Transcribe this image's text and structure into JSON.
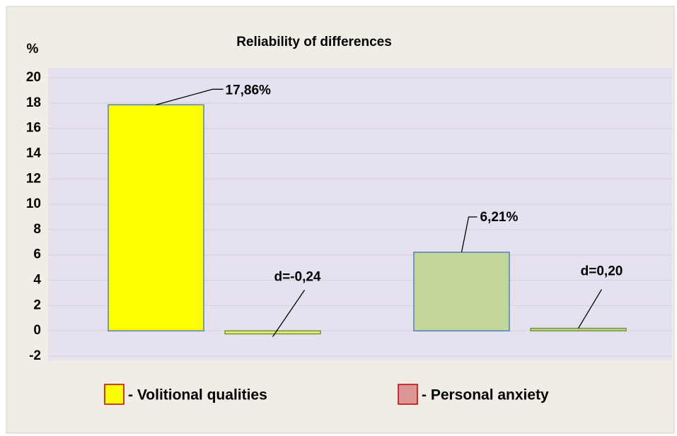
{
  "chart_data": {
    "type": "bar",
    "title": "Reliability of differences",
    "y_label": "%",
    "categories": [
      null,
      null,
      null,
      null
    ],
    "values": [
      17.86,
      -0.24,
      6.21,
      0.2
    ],
    "value_labels": [
      "17,86%",
      "d=-0,24",
      "6,21%",
      "d=0,20"
    ],
    "colors": [
      "#ffff00",
      "#e4ee6a",
      "#c4d79b",
      "#c4d79b"
    ],
    "ylim": [
      -2,
      20
    ],
    "yticks": [
      -2,
      0,
      2,
      4,
      6,
      8,
      10,
      12,
      14,
      16,
      18,
      20
    ],
    "grid": true,
    "legend": [
      {
        "name": "- Volitional qualities",
        "color": "#ffff00"
      },
      {
        "name": "- Personal anxiety",
        "color": "#d99694"
      }
    ]
  }
}
